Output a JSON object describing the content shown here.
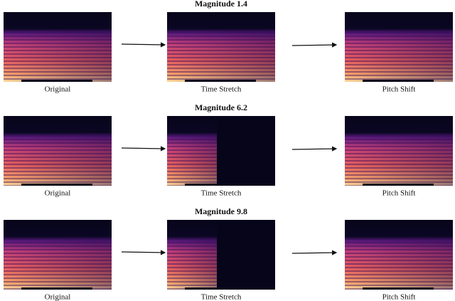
{
  "rows": [
    {
      "title": "Magnitude 1.4",
      "panels": [
        "Original",
        "Time Stretch",
        "Pitch Shift"
      ]
    },
    {
      "title": "Magnitude 6.2",
      "panels": [
        "Original",
        "Time Stretch",
        "Pitch Shift"
      ]
    },
    {
      "title": "Magnitude 9.8",
      "panels": [
        "Original",
        "Time Stretch",
        "Pitch Shift"
      ]
    }
  ]
}
